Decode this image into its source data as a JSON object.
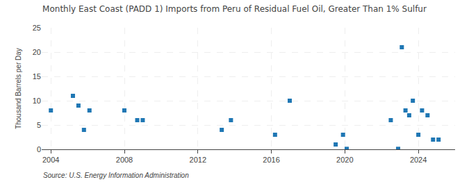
{
  "chart_data": {
    "type": "scatter",
    "title": "Monthly East Coast (PADD 1) Imports from Peru of Residual Fuel Oil, Greater Than 1% Sulfur",
    "ylabel": "Thousand Barrels per Day",
    "annotations": [
      "Source: U.S. Energy Information Administration"
    ],
    "marker": "square",
    "grid": true,
    "x": [
      2004.0,
      2005.2,
      2005.5,
      2005.8,
      2006.1,
      2008.0,
      2008.7,
      2009.0,
      2013.3,
      2013.8,
      2016.2,
      2017.0,
      2019.5,
      2019.9,
      2020.1,
      2022.5,
      2022.9,
      2023.1,
      2023.3,
      2023.5,
      2023.7,
      2024.0,
      2024.2,
      2024.5,
      2024.8,
      2025.1
    ],
    "values": [
      8.0,
      11.0,
      9.0,
      4.0,
      8.0,
      8.0,
      6.0,
      6.0,
      4.0,
      6.0,
      3.0,
      10.0,
      1.0,
      3.0,
      0.1,
      6.0,
      0.1,
      21.0,
      8.0,
      7.0,
      10.0,
      3.0,
      8.0,
      7.0,
      2.0,
      2.0
    ],
    "xlim": [
      2003.5,
      2026.0
    ],
    "xticks": [
      2004,
      2008,
      2012,
      2016,
      2020,
      2024
    ],
    "ylim": [
      0,
      25
    ],
    "yticks": [
      0,
      5,
      10,
      15,
      20,
      25
    ]
  }
}
